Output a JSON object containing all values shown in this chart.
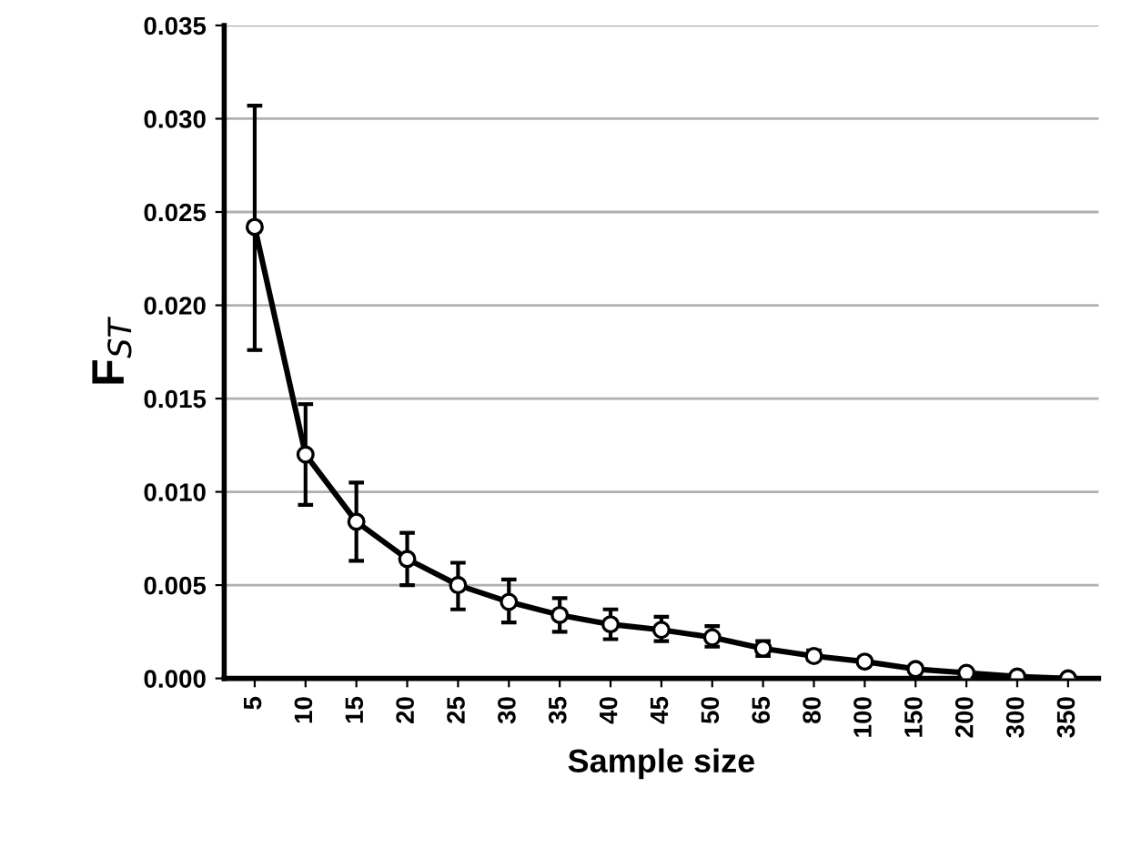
{
  "chart_data": {
    "type": "line",
    "xlabel": "Sample size",
    "ylabel": "F$_{ST}$",
    "categories": [
      "5",
      "10",
      "15",
      "20",
      "25",
      "30",
      "35",
      "40",
      "45",
      "50",
      "65",
      "80",
      "100",
      "150",
      "200",
      "300",
      "350"
    ],
    "series": [
      {
        "color": "#000000",
        "values": [
          0.0242,
          0.012,
          0.0084,
          0.0064,
          0.005,
          0.0041,
          0.0034,
          0.0029,
          0.0026,
          0.0022,
          0.0016,
          0.0012,
          0.0009,
          0.0005,
          0.0003,
          0.0001,
          0.0
        ],
        "errors": [
          [
            0.0176,
            0.0307
          ],
          [
            0.0093,
            0.0147
          ],
          [
            0.0063,
            0.0105
          ],
          [
            0.005,
            0.0078
          ],
          [
            0.0037,
            0.0062
          ],
          [
            0.003,
            0.0053
          ],
          [
            0.0025,
            0.0043
          ],
          [
            0.0021,
            0.0037
          ],
          [
            0.002,
            0.0033
          ],
          [
            0.0017,
            0.0028
          ],
          [
            0.0012,
            0.002
          ],
          [
            0.001,
            0.0015
          ],
          null,
          null,
          null,
          null,
          null
        ]
      }
    ],
    "ylim": [
      0,
      0.035
    ],
    "yticks": [
      {
        "value": 0,
        "label": "0.000"
      },
      {
        "value": 0.005,
        "label": "0.005"
      },
      {
        "value": 0.01,
        "label": "0.010"
      },
      {
        "value": 0.015,
        "label": "0.015"
      },
      {
        "value": 0.02,
        "label": "0.020"
      },
      {
        "value": 0.025,
        "label": "0.025"
      },
      {
        "value": 0.03,
        "label": "0.030"
      },
      {
        "value": 0.035,
        "label": "0.035"
      }
    ],
    "grid": "y",
    "legend": false,
    "marker": "circle",
    "line_style": "solid"
  }
}
